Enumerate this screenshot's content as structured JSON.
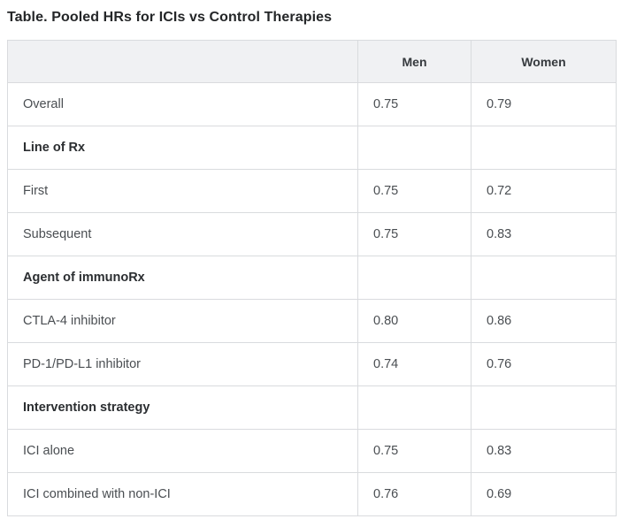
{
  "title": "Table. Pooled HRs for ICIs vs Control Therapies",
  "table": {
    "columns": [
      "",
      "Men",
      "Women"
    ],
    "rows": [
      {
        "label": "Overall",
        "men": "0.75",
        "women": "0.79",
        "section": false
      },
      {
        "label": "Line of Rx",
        "men": "",
        "women": "",
        "section": true
      },
      {
        "label": "First",
        "men": "0.75",
        "women": "0.72",
        "section": false
      },
      {
        "label": "Subsequent",
        "men": "0.75",
        "women": "0.83",
        "section": false
      },
      {
        "label": "Agent of immunoRx",
        "men": "",
        "women": "",
        "section": true
      },
      {
        "label": "CTLA-4 inhibitor",
        "men": "0.80",
        "women": "0.86",
        "section": false
      },
      {
        "label": "PD-1/PD-L1 inhibitor",
        "men": "0.74",
        "women": "0.76",
        "section": false
      },
      {
        "label": "Intervention strategy",
        "men": "",
        "women": "",
        "section": true
      },
      {
        "label": "ICI alone",
        "men": "0.75",
        "women": "0.83",
        "section": false
      },
      {
        "label": "ICI combined with non-ICI",
        "men": "0.76",
        "women": "0.69",
        "section": false
      }
    ]
  },
  "colors": {
    "header_bg": "#f0f1f3",
    "border_color": "#d9dbde",
    "title_color": "#242628",
    "body_text": "#4a4e52",
    "section_text": "#2b2e31",
    "header_text": "#363a3e"
  },
  "chart_data": {
    "type": "table",
    "title": "Table. Pooled HRs for ICIs vs Control Therapies",
    "columns": [
      "",
      "Men",
      "Women"
    ],
    "series": [
      {
        "name": "Men",
        "values": [
          0.75,
          null,
          0.75,
          0.75,
          null,
          0.8,
          0.74,
          null,
          0.75,
          0.76
        ]
      },
      {
        "name": "Women",
        "values": [
          0.79,
          null,
          0.72,
          0.83,
          null,
          0.86,
          0.76,
          null,
          0.83,
          0.69
        ]
      }
    ],
    "categories": [
      "Overall",
      "Line of Rx",
      "First",
      "Subsequent",
      "Agent of immunoRx",
      "CTLA-4 inhibitor",
      "PD-1/PD-L1 inhibitor",
      "Intervention strategy",
      "ICI alone",
      "ICI combined with non-ICI"
    ]
  }
}
